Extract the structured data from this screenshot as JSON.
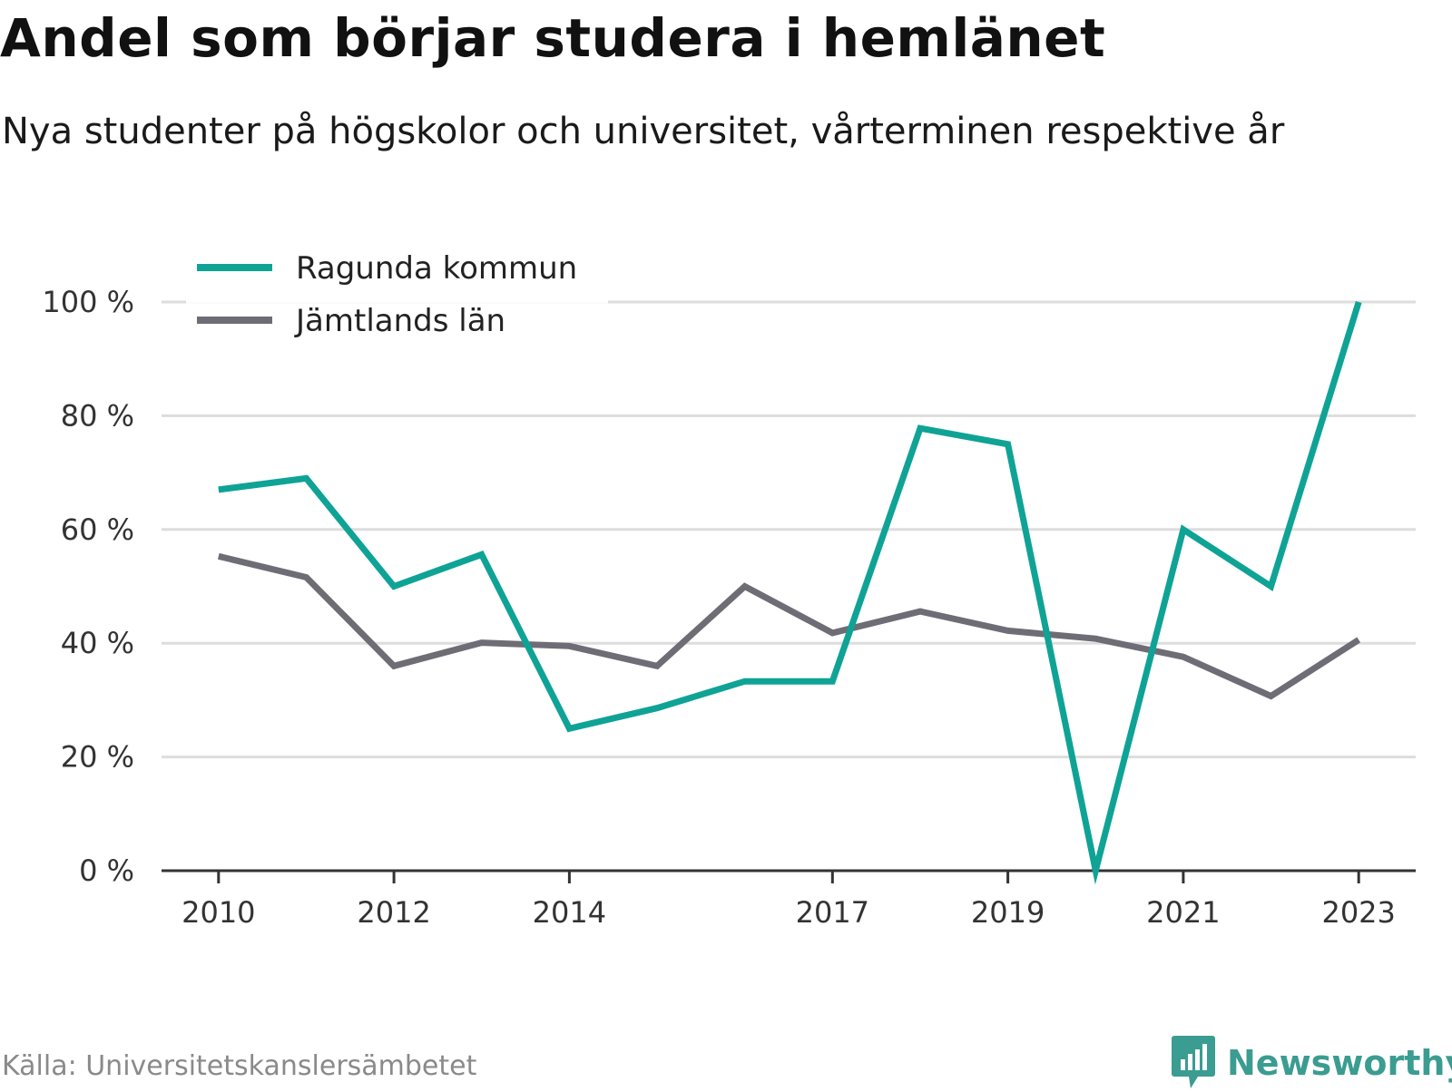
{
  "header": {
    "title": "Andel som börjar studera i hemlänet",
    "subtitle": "Nya studenter på högskolor och universitet, vårterminen respektive år"
  },
  "footer": {
    "source": "Källa: Universitetskanslersämbetet",
    "logo_text": "Newsworthy"
  },
  "colors": {
    "series_1": "#0fa396",
    "series_2": "#6e6d75",
    "grid": "#dddddd",
    "axis": "#333333",
    "brand": "#3b9c91"
  },
  "chart_data": {
    "type": "line",
    "x": [
      2010,
      2011,
      2012,
      2013,
      2014,
      2015,
      2016,
      2017,
      2018,
      2019,
      2020,
      2021,
      2022,
      2023
    ],
    "x_tick_labels": [
      "2010",
      "2012",
      "2014",
      "2017",
      "2019",
      "2021",
      "2023"
    ],
    "y_tick_labels": [
      "0 %",
      "20 %",
      "40 %",
      "60 %",
      "80 %",
      "100 %"
    ],
    "y_ticks": [
      0,
      20,
      40,
      60,
      80,
      100
    ],
    "ylim": [
      0,
      100
    ],
    "xlim": [
      2009.35,
      2023.65
    ],
    "grid": true,
    "legend_position": "top-left",
    "series": [
      {
        "name": "Ragunda kommun",
        "color": "#0fa396",
        "values": [
          67,
          69,
          50,
          55.6,
          25,
          28.6,
          33.3,
          33.3,
          77.8,
          75,
          0,
          60,
          50,
          100
        ]
      },
      {
        "name": "Jämtlands län",
        "color": "#6e6d75",
        "values": [
          55.3,
          51.6,
          36,
          40.1,
          39.5,
          36,
          50,
          41.8,
          45.6,
          42.2,
          40.8,
          37.6,
          30.7,
          40.6
        ]
      }
    ]
  }
}
